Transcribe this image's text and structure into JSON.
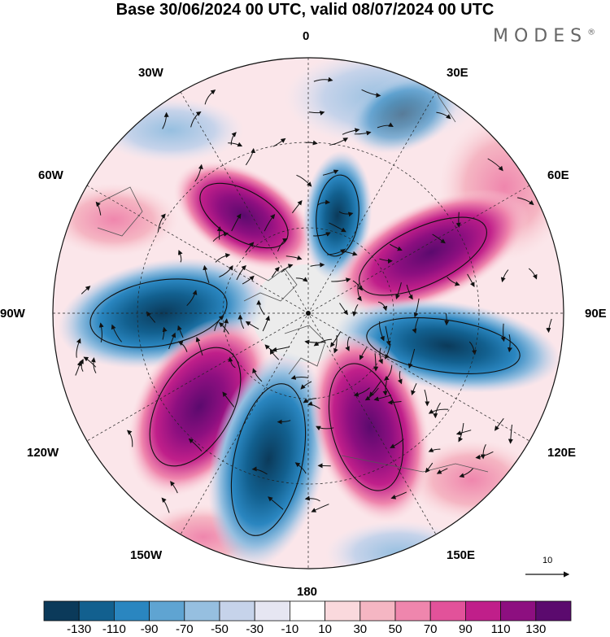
{
  "title": "Base 30/06/2024 00 UTC, valid 08/07/2024 00 UTC",
  "brand": "MODES",
  "brand_mark": "®",
  "longitudes": {
    "top": "0",
    "bottom": "180",
    "left": "90W",
    "right": "90E",
    "l30w": "30W",
    "l60w": "60W",
    "l120w": "120W",
    "l150w": "150W",
    "l30e": "30E",
    "l60e": "60E",
    "l120e": "120E",
    "l150e": "150E"
  },
  "reference_vector": "10",
  "colorbar": {
    "colors": [
      "#0b3a5a",
      "#12608f",
      "#2a86c0",
      "#5fa4d2",
      "#96bfe0",
      "#c6d3ea",
      "#e6e6f2",
      "#ffffff",
      "#fad9dd",
      "#f5b6c3",
      "#ef86ad",
      "#e2529a",
      "#c01f8a",
      "#8d0f80",
      "#5b0a6e"
    ],
    "ticks": [
      "-130",
      "-110",
      "-90",
      "-70",
      "-50",
      "-30",
      "-10",
      "10",
      "30",
      "50",
      "70",
      "90",
      "110",
      "130"
    ]
  },
  "map_colors": {
    "positive_strong": "#7a1280",
    "positive_mid": "#d8409a",
    "positive_weak": "#f3b3c6",
    "negative_strong": "#13496f",
    "negative_mid": "#3f8cc2",
    "negative_weak": "#b8cbe6",
    "neutral": "#ececec",
    "background": "#fde4e8"
  }
}
